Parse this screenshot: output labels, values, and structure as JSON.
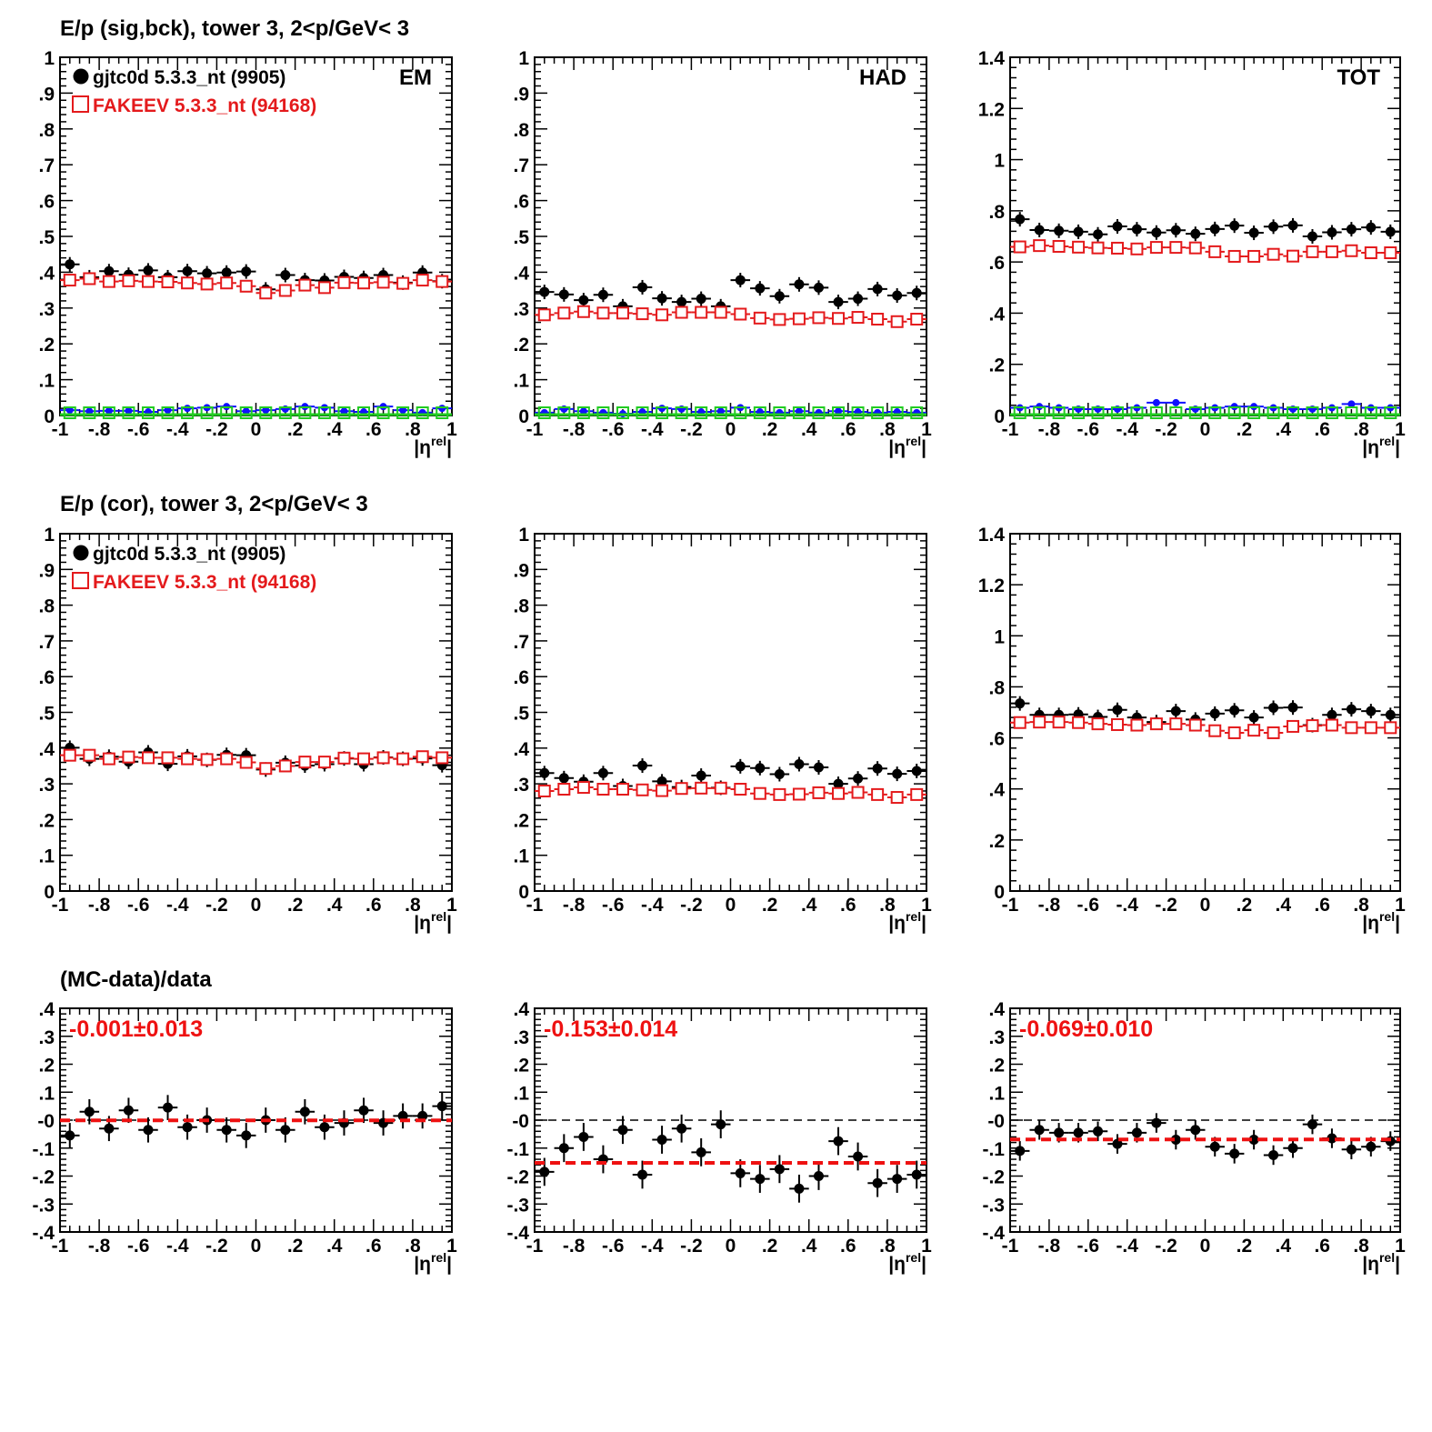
{
  "titles": {
    "row1": "E/p (sig,bck), tower 3,  2<p/GeV< 3",
    "row2": "E/p (cor), tower 3,  2<p/GeV< 3",
    "row3": "(MC-data)/data"
  },
  "legend": {
    "data": "gjtc0d 5.3.3_nt (9905)",
    "mc": "FAKEEV 5.3.3_nt (94168)"
  },
  "colors": {
    "data": "#000000",
    "mc": "#e41a1c",
    "bck_data": "#1010ff",
    "bck_mc": "#22cc22",
    "fit": "#ee1111"
  },
  "chart_data": [
    {
      "id": "sig-bck-em",
      "type": "scatter",
      "corner_label": "EM",
      "xlabel": "|η^rel|",
      "xlim": [
        -1,
        1
      ],
      "ylim": [
        0,
        1
      ],
      "x": [
        -0.95,
        -0.85,
        -0.75,
        -0.65,
        -0.55,
        -0.45,
        -0.35,
        -0.25,
        -0.15,
        -0.05,
        0.05,
        0.15,
        0.25,
        0.35,
        0.45,
        0.55,
        0.65,
        0.75,
        0.85,
        0.95
      ],
      "series": [
        {
          "name": "gjtc0d 5.3.3_nt (9905)",
          "role": "data",
          "marker": "filled-circle",
          "values": [
            0.422,
            0.386,
            0.403,
            0.393,
            0.405,
            0.386,
            0.403,
            0.397,
            0.399,
            0.402,
            0.352,
            0.392,
            0.378,
            0.377,
            0.387,
            0.384,
            0.392,
            0.371,
            0.399,
            0.375
          ]
        },
        {
          "name": "FAKEEV 5.3.3_nt (94168)",
          "role": "mc",
          "marker": "open-square",
          "values": [
            0.378,
            0.382,
            0.374,
            0.376,
            0.374,
            0.373,
            0.37,
            0.367,
            0.37,
            0.361,
            0.342,
            0.349,
            0.364,
            0.357,
            0.371,
            0.37,
            0.372,
            0.369,
            0.378,
            0.374
          ]
        },
        {
          "role": "bck_data",
          "marker": "small-circle",
          "values": [
            0.015,
            0.012,
            0.013,
            0.013,
            0.01,
            0.015,
            0.02,
            0.022,
            0.025,
            0.012,
            0.015,
            0.018,
            0.025,
            0.022,
            0.012,
            0.01,
            0.025,
            0.015,
            0.008,
            0.02
          ]
        },
        {
          "role": "bck_mc",
          "marker": "open-square",
          "values": [
            0.0,
            0.0,
            0.0,
            0.0,
            0.0,
            0.0,
            0.0,
            0.0,
            0.0,
            0.0,
            0.0,
            0.0,
            0.0,
            0.0,
            0.0,
            0.0,
            0.0,
            0.0,
            0.0,
            0.0
          ]
        }
      ]
    },
    {
      "id": "sig-bck-had",
      "type": "scatter",
      "corner_label": "HAD",
      "xlabel": "|η^rel|",
      "xlim": [
        -1,
        1
      ],
      "ylim": [
        0,
        1
      ],
      "x": [
        -0.95,
        -0.85,
        -0.75,
        -0.65,
        -0.55,
        -0.45,
        -0.35,
        -0.25,
        -0.15,
        -0.05,
        0.05,
        0.15,
        0.25,
        0.35,
        0.45,
        0.55,
        0.65,
        0.75,
        0.85,
        0.95
      ],
      "series": [
        {
          "name": "gjtc0d 5.3.3_nt (9905)",
          "role": "data",
          "marker": "filled-circle",
          "values": [
            0.345,
            0.338,
            0.322,
            0.337,
            0.305,
            0.358,
            0.327,
            0.317,
            0.326,
            0.305,
            0.378,
            0.355,
            0.333,
            0.366,
            0.357,
            0.317,
            0.326,
            0.353,
            0.335,
            0.342
          ]
        },
        {
          "name": "FAKEEV 5.3.3_nt (94168)",
          "role": "mc",
          "marker": "open-square",
          "values": [
            0.281,
            0.286,
            0.29,
            0.286,
            0.286,
            0.284,
            0.281,
            0.288,
            0.288,
            0.288,
            0.283,
            0.272,
            0.268,
            0.27,
            0.273,
            0.271,
            0.274,
            0.269,
            0.262,
            0.269
          ]
        },
        {
          "role": "bck_data",
          "marker": "small-circle",
          "values": [
            0.008,
            0.018,
            0.012,
            0.008,
            0.005,
            0.01,
            0.02,
            0.018,
            0.01,
            0.012,
            0.022,
            0.01,
            0.008,
            0.012,
            0.008,
            0.012,
            0.01,
            0.008,
            0.01,
            0.008
          ]
        },
        {
          "role": "bck_mc",
          "marker": "open-square",
          "values": [
            0.0,
            0.0,
            0.0,
            0.0,
            0.0,
            0.0,
            0.0,
            0.0,
            0.0,
            0.0,
            0.0,
            0.0,
            0.0,
            0.0,
            0.0,
            0.0,
            0.0,
            0.0,
            0.0,
            0.0
          ]
        }
      ]
    },
    {
      "id": "sig-bck-tot",
      "type": "scatter",
      "corner_label": "TOT",
      "xlabel": "|η^rel|",
      "xlim": [
        -1,
        1
      ],
      "ylim": [
        0,
        1.4
      ],
      "x": [
        -0.95,
        -0.85,
        -0.75,
        -0.65,
        -0.55,
        -0.45,
        -0.35,
        -0.25,
        -0.15,
        -0.05,
        0.05,
        0.15,
        0.25,
        0.35,
        0.45,
        0.55,
        0.65,
        0.75,
        0.85,
        0.95
      ],
      "series": [
        {
          "name": "gjtc0d 5.3.3_nt (9905)",
          "role": "data",
          "marker": "filled-circle",
          "values": [
            0.767,
            0.725,
            0.722,
            0.718,
            0.708,
            0.739,
            0.728,
            0.715,
            0.724,
            0.71,
            0.729,
            0.742,
            0.714,
            0.738,
            0.743,
            0.7,
            0.716,
            0.728,
            0.735,
            0.718
          ]
        },
        {
          "name": "FAKEEV 5.3.3_nt (94168)",
          "role": "mc",
          "marker": "open-square",
          "values": [
            0.659,
            0.664,
            0.661,
            0.658,
            0.655,
            0.654,
            0.651,
            0.657,
            0.657,
            0.655,
            0.64,
            0.622,
            0.622,
            0.63,
            0.623,
            0.64,
            0.64,
            0.644,
            0.636,
            0.636
          ]
        },
        {
          "role": "bck_data",
          "marker": "small-circle",
          "values": [
            0.03,
            0.035,
            0.03,
            0.025,
            0.025,
            0.025,
            0.03,
            0.05,
            0.05,
            0.025,
            0.03,
            0.035,
            0.035,
            0.03,
            0.025,
            0.025,
            0.03,
            0.045,
            0.03,
            0.03
          ]
        },
        {
          "role": "bck_mc",
          "marker": "open-square",
          "values": [
            0.0,
            0.0,
            0.0,
            0.0,
            0.0,
            0.0,
            0.0,
            0.0,
            0.0,
            0.0,
            0.0,
            0.0,
            0.0,
            0.0,
            0.0,
            0.0,
            0.0,
            0.0,
            0.0,
            0.0
          ]
        }
      ]
    },
    {
      "id": "cor-em",
      "type": "scatter",
      "xlabel": "|η^rel|",
      "xlim": [
        -1,
        1
      ],
      "ylim": [
        0,
        1
      ],
      "x": [
        -0.95,
        -0.85,
        -0.75,
        -0.65,
        -0.55,
        -0.45,
        -0.35,
        -0.25,
        -0.15,
        -0.05,
        0.05,
        0.15,
        0.25,
        0.35,
        0.45,
        0.55,
        0.65,
        0.75,
        0.85,
        0.95
      ],
      "series": [
        {
          "name": "gjtc0d 5.3.3_nt (9905)",
          "role": "data",
          "marker": "filled-circle",
          "values": [
            0.401,
            0.37,
            0.376,
            0.362,
            0.388,
            0.356,
            0.377,
            0.367,
            0.381,
            0.38,
            0.34,
            0.359,
            0.351,
            0.355,
            0.371,
            0.355,
            0.374,
            0.37,
            0.371,
            0.352
          ]
        },
        {
          "name": "FAKEEV 5.3.3_nt (94168)",
          "role": "mc",
          "marker": "open-square",
          "values": [
            0.38,
            0.38,
            0.37,
            0.375,
            0.373,
            0.373,
            0.37,
            0.368,
            0.37,
            0.36,
            0.343,
            0.35,
            0.361,
            0.361,
            0.372,
            0.37,
            0.373,
            0.37,
            0.376,
            0.373
          ]
        }
      ]
    },
    {
      "id": "cor-had",
      "type": "scatter",
      "xlabel": "|η^rel|",
      "xlim": [
        -1,
        1
      ],
      "ylim": [
        0,
        1
      ],
      "x": [
        -0.95,
        -0.85,
        -0.75,
        -0.65,
        -0.55,
        -0.45,
        -0.35,
        -0.25,
        -0.15,
        -0.05,
        0.05,
        0.15,
        0.25,
        0.35,
        0.45,
        0.55,
        0.65,
        0.75,
        0.85,
        0.95
      ],
      "series": [
        {
          "name": "gjtc0d 5.3.3_nt (9905)",
          "role": "data",
          "marker": "filled-circle",
          "values": [
            0.33,
            0.316,
            0.306,
            0.33,
            0.294,
            0.351,
            0.307,
            0.291,
            0.323,
            0.289,
            0.349,
            0.344,
            0.327,
            0.355,
            0.346,
            0.3,
            0.315,
            0.343,
            0.328,
            0.336
          ]
        },
        {
          "name": "FAKEEV 5.3.3_nt (94168)",
          "role": "mc",
          "marker": "open-square",
          "values": [
            0.28,
            0.285,
            0.29,
            0.285,
            0.285,
            0.283,
            0.281,
            0.287,
            0.288,
            0.288,
            0.285,
            0.273,
            0.27,
            0.271,
            0.275,
            0.273,
            0.276,
            0.27,
            0.262,
            0.27
          ]
        }
      ]
    },
    {
      "id": "cor-tot",
      "type": "scatter",
      "xlabel": "|η^rel|",
      "xlim": [
        -1,
        1
      ],
      "ylim": [
        0,
        1.4
      ],
      "x": [
        -0.95,
        -0.85,
        -0.75,
        -0.65,
        -0.55,
        -0.45,
        -0.35,
        -0.25,
        -0.15,
        -0.05,
        0.05,
        0.15,
        0.25,
        0.35,
        0.45,
        0.55,
        0.65,
        0.75,
        0.85,
        0.95
      ],
      "series": [
        {
          "name": "gjtc0d 5.3.3_nt (9905)",
          "role": "data",
          "marker": "filled-circle",
          "values": [
            0.735,
            0.69,
            0.69,
            0.692,
            0.682,
            0.71,
            0.68,
            0.662,
            0.705,
            0.672,
            0.695,
            0.708,
            0.68,
            0.718,
            0.719,
            0.65,
            0.69,
            0.712,
            0.705,
            0.69
          ]
        },
        {
          "name": "FAKEEV 5.3.3_nt (94168)",
          "role": "mc",
          "marker": "open-square",
          "values": [
            0.66,
            0.662,
            0.662,
            0.66,
            0.655,
            0.652,
            0.65,
            0.655,
            0.655,
            0.65,
            0.628,
            0.62,
            0.63,
            0.62,
            0.645,
            0.648,
            0.65,
            0.64,
            0.64,
            0.64
          ]
        }
      ]
    },
    {
      "id": "ratio-em",
      "type": "scatter",
      "fit_label": "-0.001±0.013",
      "fit_value": -0.001,
      "xlabel": "|η^rel|",
      "xlim": [
        -1,
        1
      ],
      "ylim": [
        -0.4,
        0.4
      ],
      "x": [
        -0.95,
        -0.85,
        -0.75,
        -0.65,
        -0.55,
        -0.45,
        -0.35,
        -0.25,
        -0.15,
        -0.05,
        0.05,
        0.15,
        0.25,
        0.35,
        0.45,
        0.55,
        0.65,
        0.75,
        0.85,
        0.95
      ],
      "series": [
        {
          "role": "ratio",
          "marker": "filled-circle",
          "values": [
            -0.055,
            0.03,
            -0.03,
            0.035,
            -0.035,
            0.045,
            -0.025,
            0.0,
            -0.035,
            -0.055,
            0.0,
            -0.035,
            0.03,
            -0.025,
            -0.01,
            0.035,
            -0.01,
            0.015,
            0.015,
            0.05
          ],
          "errors": [
            0.045,
            0.045,
            0.045,
            0.045,
            0.045,
            0.045,
            0.045,
            0.045,
            0.045,
            0.045,
            0.045,
            0.045,
            0.045,
            0.045,
            0.045,
            0.045,
            0.045,
            0.045,
            0.045,
            0.05
          ]
        }
      ]
    },
    {
      "id": "ratio-had",
      "type": "scatter",
      "fit_label": "-0.153±0.014",
      "fit_value": -0.153,
      "xlabel": "|η^rel|",
      "xlim": [
        -1,
        1
      ],
      "ylim": [
        -0.4,
        0.4
      ],
      "x": [
        -0.95,
        -0.85,
        -0.75,
        -0.65,
        -0.55,
        -0.45,
        -0.35,
        -0.25,
        -0.15,
        -0.05,
        0.05,
        0.15,
        0.25,
        0.35,
        0.45,
        0.55,
        0.65,
        0.75,
        0.85,
        0.95
      ],
      "series": [
        {
          "role": "ratio",
          "marker": "filled-circle",
          "values": [
            -0.185,
            -0.1,
            -0.06,
            -0.14,
            -0.035,
            -0.195,
            -0.07,
            -0.03,
            -0.115,
            -0.015,
            -0.19,
            -0.21,
            -0.175,
            -0.245,
            -0.2,
            -0.075,
            -0.13,
            -0.225,
            -0.21,
            -0.195
          ],
          "errors": [
            0.05,
            0.05,
            0.05,
            0.05,
            0.05,
            0.05,
            0.05,
            0.05,
            0.05,
            0.05,
            0.05,
            0.05,
            0.05,
            0.05,
            0.05,
            0.05,
            0.05,
            0.05,
            0.05,
            0.05
          ]
        }
      ]
    },
    {
      "id": "ratio-tot",
      "type": "scatter",
      "fit_label": "-0.069±0.010",
      "fit_value": -0.069,
      "xlabel": "|η^rel|",
      "xlim": [
        -1,
        1
      ],
      "ylim": [
        -0.4,
        0.4
      ],
      "x": [
        -0.95,
        -0.85,
        -0.75,
        -0.65,
        -0.55,
        -0.45,
        -0.35,
        -0.25,
        -0.15,
        -0.05,
        0.05,
        0.15,
        0.25,
        0.35,
        0.45,
        0.55,
        0.65,
        0.75,
        0.85,
        0.95
      ],
      "series": [
        {
          "role": "ratio",
          "marker": "filled-circle",
          "values": [
            -0.11,
            -0.035,
            -0.045,
            -0.045,
            -0.04,
            -0.085,
            -0.045,
            -0.01,
            -0.07,
            -0.035,
            -0.095,
            -0.12,
            -0.07,
            -0.125,
            -0.1,
            -0.015,
            -0.065,
            -0.105,
            -0.095,
            -0.075
          ],
          "errors": [
            0.035,
            0.035,
            0.035,
            0.035,
            0.035,
            0.035,
            0.035,
            0.035,
            0.035,
            0.035,
            0.035,
            0.035,
            0.035,
            0.035,
            0.035,
            0.035,
            0.035,
            0.035,
            0.035,
            0.035
          ]
        }
      ]
    }
  ]
}
